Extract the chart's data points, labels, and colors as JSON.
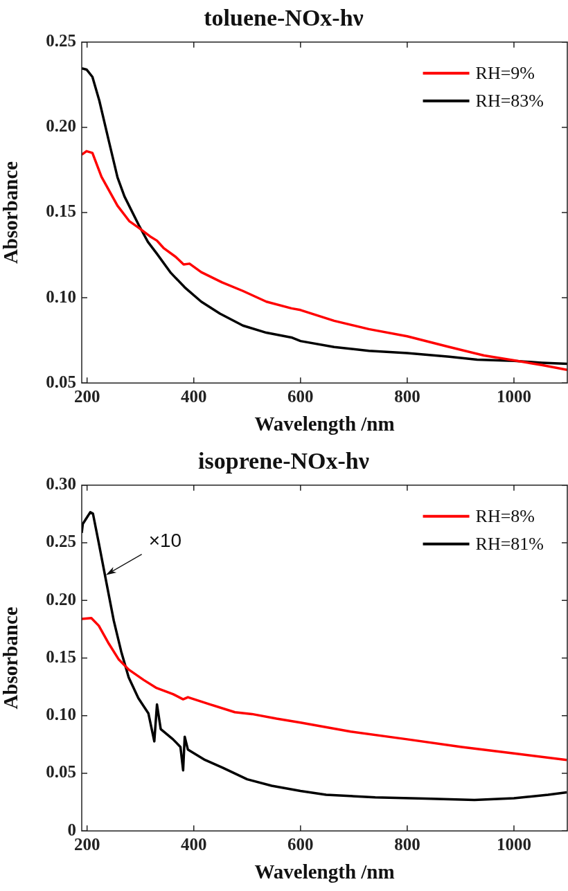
{
  "chart_data": [
    {
      "type": "line",
      "title": "toluene-NOx-hν",
      "xlabel": "Wavelength /nm",
      "ylabel": "Absorbance",
      "xlim": [
        190,
        1100
      ],
      "ylim": [
        0.05,
        0.25
      ],
      "xticks": [
        200,
        400,
        600,
        800,
        1000
      ],
      "yticks": [
        {
          "value": 0.05,
          "label": "0.05"
        },
        {
          "value": 0.1,
          "label": "0.10"
        },
        {
          "value": 0.15,
          "label": "0.15"
        },
        {
          "value": 0.2,
          "label": "0.20"
        },
        {
          "value": 0.25,
          "label": "0.25"
        }
      ],
      "legend": "top right",
      "series": [
        {
          "name": "RH=9%",
          "color": "#ff0000",
          "x": [
            190,
            199,
            210,
            227,
            257,
            279,
            297,
            318,
            331,
            344,
            366,
            381,
            392,
            414,
            453,
            492,
            536,
            583,
            600,
            663,
            728,
            800,
            879,
            944,
            1000,
            1052,
            1100
          ],
          "values": [
            0.184,
            0.186,
            0.185,
            0.171,
            0.154,
            0.145,
            0.141,
            0.136,
            0.1335,
            0.129,
            0.124,
            0.1195,
            0.12,
            0.115,
            0.109,
            0.104,
            0.0977,
            0.0938,
            0.0928,
            0.0865,
            0.0816,
            0.0774,
            0.0711,
            0.0661,
            0.0633,
            0.0605,
            0.0577
          ]
        },
        {
          "name": "RH=83%",
          "color": "#000000",
          "x": [
            190,
            199,
            210,
            223,
            240,
            257,
            270,
            297,
            314,
            331,
            357,
            383,
            414,
            449,
            492,
            536,
            583,
            600,
            663,
            728,
            800,
            879,
            931,
            1000,
            1052,
            1100
          ],
          "values": [
            0.2346,
            0.2339,
            0.2296,
            0.2156,
            0.193,
            0.1707,
            0.1595,
            0.1426,
            0.1328,
            0.1258,
            0.1146,
            0.1061,
            0.0977,
            0.0907,
            0.0837,
            0.0795,
            0.0767,
            0.0746,
            0.0711,
            0.0689,
            0.0675,
            0.0654,
            0.0637,
            0.063,
            0.0619,
            0.0612
          ]
        }
      ]
    },
    {
      "type": "line",
      "title": "isoprene-NOx-hν",
      "xlabel": "Wavelength /nm",
      "ylabel": "Absorbance",
      "xlim": [
        190,
        1100
      ],
      "ylim": [
        0,
        0.3
      ],
      "xticks": [
        200,
        400,
        600,
        800,
        1000
      ],
      "yticks": [
        0,
        {
          "value": 0.05,
          "label": "0.05"
        },
        {
          "value": 0.1,
          "label": "0.10"
        },
        {
          "value": 0.15,
          "label": "0.15"
        },
        {
          "value": 0.2,
          "label": "0.20"
        },
        {
          "value": 0.25,
          "label": "0.25"
        },
        {
          "value": 0.3,
          "label": "0.30"
        }
      ],
      "legend": "top right",
      "annotations": [
        {
          "text": "×10",
          "x": 235,
          "y": 0.222
        }
      ],
      "series": [
        {
          "name": "RH=8%",
          "color": "#ff0000",
          "x": [
            190,
            208,
            222,
            241,
            259,
            278,
            306,
            329,
            361,
            380,
            389,
            431,
            477,
            509,
            555,
            600,
            694,
            800,
            902,
            1000,
            1099
          ],
          "values": [
            0.184,
            0.1847,
            0.178,
            0.1623,
            0.149,
            0.14,
            0.131,
            0.1243,
            0.1187,
            0.1142,
            0.116,
            0.1097,
            0.103,
            0.1014,
            0.0974,
            0.094,
            0.0862,
            0.0795,
            0.0728,
            0.0672,
            0.0616
          ]
        },
        {
          "name": "RH=81%",
          "color": "#000000",
          "x": [
            190,
            192,
            197,
            206,
            211,
            222,
            236,
            250,
            264,
            278,
            296,
            315,
            326,
            331,
            338,
            361,
            375,
            380,
            383,
            389,
            421,
            454,
            500,
            546,
            600,
            648,
            740,
            833,
            926,
            1000,
            1064,
            1099
          ],
          "values": [
            0.2586,
            0.2664,
            0.27,
            0.2765,
            0.2754,
            0.2496,
            0.216,
            0.1825,
            0.1556,
            0.1332,
            0.1153,
            0.1019,
            0.0777,
            0.1097,
            0.0884,
            0.0795,
            0.0728,
            0.0526,
            0.0817,
            0.0705,
            0.0616,
            0.0549,
            0.0448,
            0.0392,
            0.0347,
            0.0313,
            0.0291,
            0.028,
            0.0269,
            0.0284,
            0.0313,
            0.0335
          ]
        }
      ]
    }
  ]
}
